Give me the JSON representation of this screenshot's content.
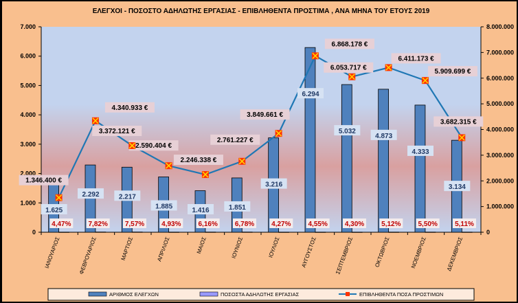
{
  "chart_data": {
    "type": "bar",
    "title": "ΕΛΕΓΧΟΙ - ΠΟΣΟΣΤΟ ΑΔΗΛΩΤΗΣ ΕΡΓΑΣΙΑΣ - ΕΠΙΒΛΗΘΕΝΤΑ ΠΡΟΣΤΙΜΑ , ΑΝΑ ΜΗΝΑ ΤΟΥ ΕΤΟΥΣ 2019",
    "categories": [
      "ΙΑΝΟΥΑΡΙΟΣ",
      "ΦΕΒΡΟΥΑΡΙΟΣ",
      "ΜΑΡΤΙΟΣ",
      "ΑΠΡΙΛΙΟΣ",
      "ΜΑΙΟΣ",
      "ΙΟΥΝΙΟΣ",
      "ΙΟΥΛΙΟΣ",
      "ΑΥΓΟΥΣΤΟΣ",
      "ΣΕΠΤΕΜΒΡΙΟΣ",
      "ΟΚΤΩΒΡΙΟΣ",
      "ΝΟΕΜΒΡΙΟΣ",
      "ΔΕΚΕΜΒΡΙΟΣ"
    ],
    "series": [
      {
        "name": "ΑΡΙΘΜΟΣ ΕΛΕΓΧΩΝ",
        "type": "bar",
        "axis": "left",
        "color": "#4F81BD",
        "values": [
          1625,
          2292,
          2217,
          1885,
          1416,
          1851,
          3216,
          6294,
          5032,
          4873,
          4333,
          3134
        ],
        "labels": [
          "1.625",
          "2.292",
          "2.217",
          "1.885",
          "1.416",
          "1.851",
          "3.216",
          "6.294",
          "5.032",
          "4.873",
          "4.333",
          "3.134"
        ]
      },
      {
        "name": "ΠΟΣΟΣΤΑ ΑΔΗΛΩΤΗΣ ΕΡΓΑΣΙΑΣ",
        "type": "bar",
        "axis": "left",
        "color": "#9999FF",
        "values": [
          4.47,
          7.82,
          7.57,
          4.93,
          6.16,
          6.78,
          4.27,
          4.55,
          4.3,
          5.12,
          5.5,
          5.11
        ],
        "labels": [
          "4,47%",
          "7,82%",
          "7,57%",
          "4,93%",
          "6,16%",
          "6,78%",
          "4,27%",
          "4,55%",
          "4,30%",
          "5,12%",
          "5,50%",
          "5,11%"
        ]
      },
      {
        "name": "ΕΠΙΒΛΗΘΕΝΤΑ ΠΟΣΑ ΠΡΟΣΤΙΜΩΝ",
        "type": "line",
        "axis": "right",
        "color": "#1F77B4",
        "values": [
          1346400,
          4340933,
          3372121,
          2590404,
          2246338,
          2761227,
          3849661,
          6868178,
          6053717,
          6411173,
          5909699,
          3682315
        ],
        "labels": [
          "1.346.400 €",
          "4.340.933 €",
          "3.372.121 €",
          "2.590.404 €",
          "2.246.338 €",
          "2.761.227 €",
          "3.849.661 €",
          "6.868.178 €",
          "6.053.717 €",
          "6.411.173 €",
          "5.909.699 €",
          "3.682.315 €"
        ]
      }
    ],
    "ylim_left": [
      0,
      7000
    ],
    "yticks_left": [
      "0",
      "1.000",
      "2.000",
      "3.000",
      "4.000",
      "5.000",
      "6.000",
      "7.000"
    ],
    "ylim_right": [
      0,
      8000000
    ],
    "yticks_right": [
      "0",
      "1.000.000",
      "2.000.000",
      "3.000.000",
      "4.000.000",
      "5.000.000",
      "6.000.000",
      "7.000.000",
      "8.000.000"
    ],
    "legend_position": "bottom"
  }
}
